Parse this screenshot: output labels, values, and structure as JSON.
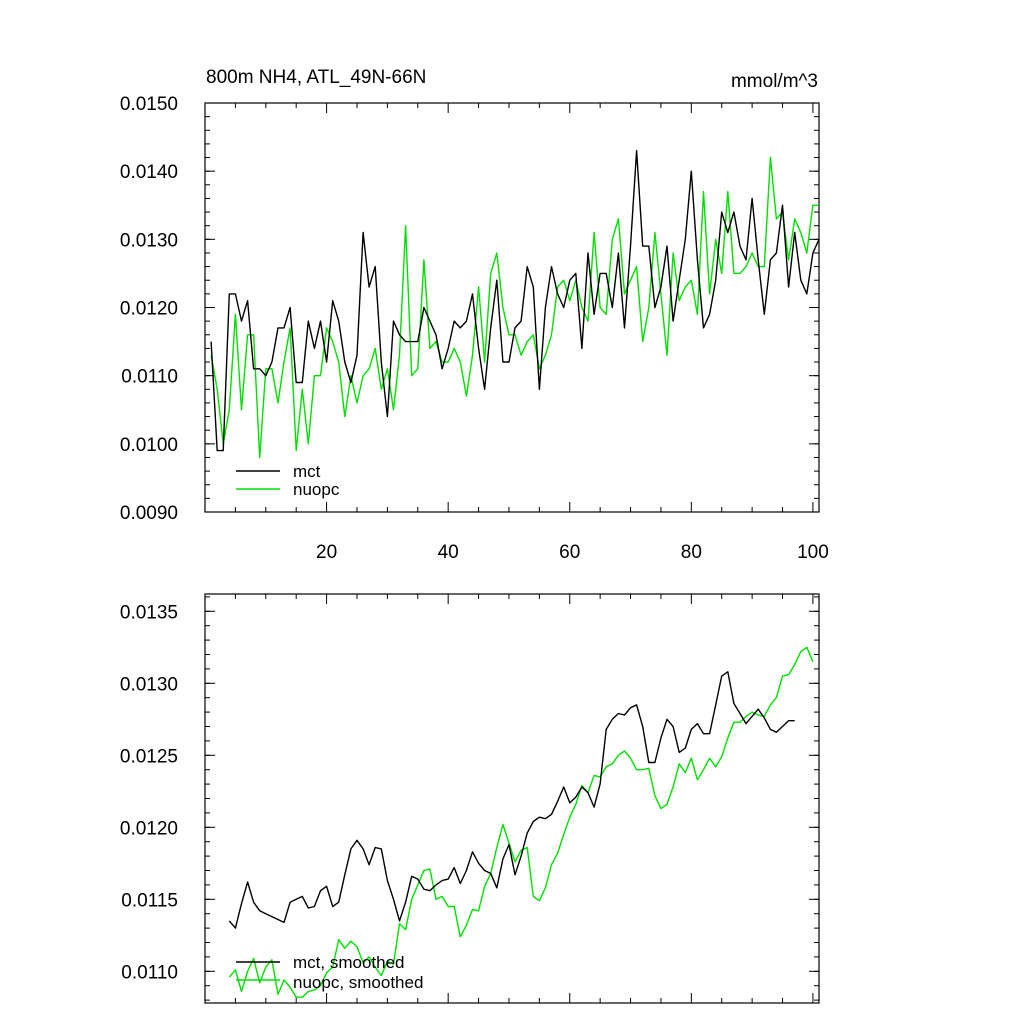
{
  "colors": {
    "mct": "#000000",
    "nuopc": "#00e000"
  },
  "chart_data": [
    {
      "type": "line",
      "title": "800m NH4, ATL_49N-66N",
      "units": "mmol/m^3",
      "xlim": [
        0,
        101
      ],
      "ylim": [
        0.009,
        0.015
      ],
      "x_ticks": [
        20,
        40,
        60,
        80,
        100
      ],
      "x_tick_labels": [
        "20",
        "40",
        "60",
        "80",
        "100"
      ],
      "y_ticks": [
        0.009,
        0.01,
        0.011,
        0.012,
        0.013,
        0.014,
        0.015
      ],
      "y_tick_labels": [
        "0.0090",
        "0.0100",
        "0.0110",
        "0.0120",
        "0.0130",
        "0.0140",
        "0.0150"
      ],
      "x_start": 1,
      "legend": [
        "mct",
        "nuopc"
      ],
      "legend_position": "bottom-left",
      "series": [
        {
          "name": "mct",
          "color_key": "mct",
          "values": [
            0.0115,
            0.0099,
            0.0099,
            0.0122,
            0.0122,
            0.0118,
            0.0121,
            0.0111,
            0.0111,
            0.011,
            0.0112,
            0.0117,
            0.0117,
            0.012,
            0.0109,
            0.0109,
            0.0118,
            0.0114,
            0.0118,
            0.0112,
            0.0121,
            0.0118,
            0.0112,
            0.0109,
            0.0113,
            0.0131,
            0.0123,
            0.0126,
            0.0112,
            0.0104,
            0.0118,
            0.0116,
            0.0115,
            0.0115,
            0.0115,
            0.012,
            0.0118,
            0.0116,
            0.0111,
            0.0114,
            0.0118,
            0.0117,
            0.0118,
            0.0122,
            0.0114,
            0.0108,
            0.0117,
            0.0124,
            0.0112,
            0.0112,
            0.0117,
            0.0118,
            0.0126,
            0.0123,
            0.0108,
            0.012,
            0.0126,
            0.0122,
            0.012,
            0.0124,
            0.0125,
            0.0114,
            0.0128,
            0.0119,
            0.0125,
            0.0125,
            0.012,
            0.0128,
            0.0117,
            0.0129,
            0.0143,
            0.0129,
            0.0129,
            0.012,
            0.0123,
            0.0129,
            0.0118,
            0.0124,
            0.013,
            0.014,
            0.0127,
            0.0117,
            0.0119,
            0.0124,
            0.0134,
            0.0131,
            0.0134,
            0.0129,
            0.0127,
            0.0136,
            0.0127,
            0.0119,
            0.0127,
            0.0128,
            0.0135,
            0.0123,
            0.0131,
            0.0124,
            0.0122,
            0.0128,
            0.013
          ]
        },
        {
          "name": "nuopc",
          "color_key": "nuopc",
          "values": [
            0.0113,
            0.0108,
            0.01,
            0.0105,
            0.0119,
            0.0105,
            0.0116,
            0.0116,
            0.0098,
            0.0111,
            0.0111,
            0.0106,
            0.0112,
            0.0117,
            0.0099,
            0.0108,
            0.01,
            0.011,
            0.011,
            0.0117,
            0.0115,
            0.0112,
            0.0104,
            0.011,
            0.0106,
            0.011,
            0.0111,
            0.0114,
            0.0108,
            0.0111,
            0.0105,
            0.0113,
            0.0132,
            0.011,
            0.0111,
            0.0127,
            0.0114,
            0.0115,
            0.0112,
            0.0112,
            0.0114,
            0.0112,
            0.0107,
            0.0113,
            0.0123,
            0.0112,
            0.0125,
            0.0128,
            0.012,
            0.0116,
            0.0116,
            0.0113,
            0.0115,
            0.0116,
            0.0111,
            0.0113,
            0.0116,
            0.0123,
            0.0124,
            0.0121,
            0.0124,
            0.012,
            0.0118,
            0.0131,
            0.012,
            0.0119,
            0.013,
            0.0133,
            0.0122,
            0.0124,
            0.0126,
            0.0115,
            0.012,
            0.0131,
            0.0122,
            0.0113,
            0.0128,
            0.0121,
            0.0123,
            0.0124,
            0.0119,
            0.0137,
            0.0122,
            0.013,
            0.0125,
            0.0137,
            0.0125,
            0.0125,
            0.0126,
            0.0128,
            0.0126,
            0.0126,
            0.0142,
            0.0133,
            0.0134,
            0.0127,
            0.0133,
            0.0131,
            0.0128,
            0.0135,
            0.0135
          ]
        }
      ]
    },
    {
      "type": "line",
      "title": "",
      "xlim": [
        0,
        101
      ],
      "ylim": [
        0.01078,
        0.01362
      ],
      "x_ticks": [
        20,
        40,
        60,
        80,
        100
      ],
      "x_tick_labels": [
        "",
        "",
        "",
        "",
        ""
      ],
      "y_ticks": [
        0.011,
        0.0115,
        0.012,
        0.0125,
        0.013,
        0.0135
      ],
      "y_tick_labels": [
        "0.0110",
        "0.0115",
        "0.0120",
        "0.0125",
        "0.0130",
        "0.0135"
      ],
      "x_start": 4,
      "legend": [
        "mct, smoothed",
        "nuopc, smoothed"
      ],
      "legend_position": "bottom-left",
      "series": [
        {
          "name": "mct, smoothed",
          "color_key": "mct",
          "values": [
            0.01135,
            0.0113,
            0.01147,
            0.01162,
            0.01148,
            0.01142,
            0.0114,
            0.01138,
            0.01136,
            0.01134,
            0.01148,
            0.0115,
            0.01152,
            0.01144,
            0.01145,
            0.01156,
            0.01159,
            0.01145,
            0.01148,
            0.01167,
            0.01185,
            0.01191,
            0.01185,
            0.01174,
            0.01186,
            0.01185,
            0.01163,
            0.0115,
            0.01135,
            0.01148,
            0.01166,
            0.01164,
            0.01157,
            0.01156,
            0.0116,
            0.01163,
            0.01164,
            0.01172,
            0.01161,
            0.0117,
            0.01183,
            0.01175,
            0.0117,
            0.01168,
            0.01158,
            0.01178,
            0.01188,
            0.01167,
            0.0118,
            0.01196,
            0.01204,
            0.01207,
            0.01206,
            0.01209,
            0.01218,
            0.01228,
            0.01217,
            0.01221,
            0.01228,
            0.01224,
            0.01214,
            0.0123,
            0.01268,
            0.01275,
            0.01279,
            0.01278,
            0.01283,
            0.01285,
            0.0127,
            0.01245,
            0.01245,
            0.01262,
            0.01275,
            0.0127,
            0.01252,
            0.01255,
            0.01268,
            0.01272,
            0.01265,
            0.01265,
            0.01285,
            0.01305,
            0.01308,
            0.01286,
            0.01279,
            0.01272,
            0.01277,
            0.01282,
            0.01276,
            0.01268,
            0.01266,
            0.0127,
            0.01274,
            0.01274
          ]
        },
        {
          "name": "nuopc, smoothed",
          "color_key": "nuopc",
          "values": [
            0.01096,
            0.01101,
            0.01086,
            0.011,
            0.01109,
            0.01092,
            0.01103,
            0.01108,
            0.01084,
            0.01094,
            0.01089,
            0.01082,
            0.01082,
            0.01086,
            0.01087,
            0.0109,
            0.01099,
            0.01103,
            0.01122,
            0.01116,
            0.01121,
            0.01117,
            0.01106,
            0.0111,
            0.01103,
            0.01097,
            0.01107,
            0.01105,
            0.01133,
            0.01129,
            0.0115,
            0.0116,
            0.0117,
            0.01171,
            0.0115,
            0.01152,
            0.01145,
            0.01145,
            0.01124,
            0.01132,
            0.01143,
            0.01142,
            0.01159,
            0.01168,
            0.01186,
            0.01202,
            0.01189,
            0.01176,
            0.01184,
            0.01186,
            0.01152,
            0.01149,
            0.01158,
            0.01174,
            0.01182,
            0.01195,
            0.01207,
            0.01216,
            0.01229,
            0.01224,
            0.01236,
            0.01235,
            0.01242,
            0.01244,
            0.0125,
            0.01253,
            0.01248,
            0.0124,
            0.0124,
            0.01241,
            0.01222,
            0.01213,
            0.01216,
            0.01228,
            0.01244,
            0.01238,
            0.01248,
            0.01233,
            0.0124,
            0.01248,
            0.01242,
            0.01249,
            0.01262,
            0.01273,
            0.01273,
            0.01277,
            0.0128,
            0.01278,
            0.01277,
            0.01285,
            0.0129,
            0.01305,
            0.01306,
            0.01313,
            0.01322,
            0.01325,
            0.01315
          ]
        }
      ]
    }
  ]
}
